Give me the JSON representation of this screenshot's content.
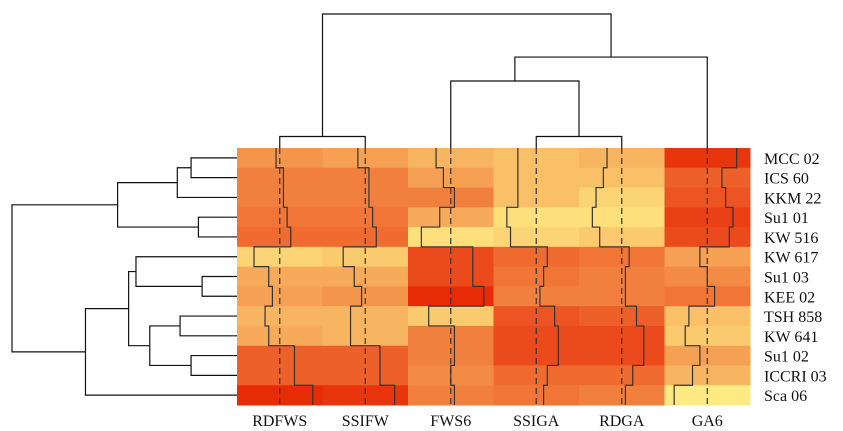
{
  "chart_data": {
    "type": "heatmap",
    "title": "",
    "rows": [
      "MCC 02",
      "ICS 60",
      "KKM  22",
      "Su1 01",
      "KW 516",
      "KW 617",
      "Su1 03",
      "KEE 02",
      "TSH 858",
      "KW 641",
      "Su1 02",
      "ICCRI 03",
      "Sca 06"
    ],
    "columns": [
      "RDFWS",
      "SSIFW",
      "FWS6",
      "SSIGA",
      "RDGA",
      "GA6"
    ],
    "values": [
      [
        0.45,
        0.4,
        0.3,
        0.25,
        0.3,
        0.9
      ],
      [
        0.55,
        0.55,
        0.4,
        0.25,
        0.25,
        0.7
      ],
      [
        0.55,
        0.55,
        0.55,
        0.25,
        0.15,
        0.75
      ],
      [
        0.6,
        0.6,
        0.35,
        0.1,
        0.1,
        0.85
      ],
      [
        0.65,
        0.65,
        0.1,
        0.15,
        0.2,
        0.8
      ],
      [
        0.15,
        0.2,
        0.8,
        0.65,
        0.6,
        0.4
      ],
      [
        0.35,
        0.35,
        0.8,
        0.6,
        0.55,
        0.5
      ],
      [
        0.4,
        0.45,
        0.95,
        0.55,
        0.55,
        0.6
      ],
      [
        0.3,
        0.3,
        0.2,
        0.75,
        0.7,
        0.25
      ],
      [
        0.35,
        0.3,
        0.55,
        0.8,
        0.8,
        0.2
      ],
      [
        0.7,
        0.7,
        0.55,
        0.8,
        0.8,
        0.4
      ],
      [
        0.7,
        0.7,
        0.5,
        0.65,
        0.65,
        0.3
      ],
      [
        0.95,
        0.9,
        0.55,
        0.6,
        0.55,
        0.05
      ]
    ],
    "color_scale": {
      "low": "#fff58a",
      "high": "#e62000"
    },
    "row_dendrogram": [
      {
        "a": "MCC 02",
        "b": "ICS 60",
        "height": 0.5
      },
      {
        "a": "KKM  22",
        "b": "MCC 02+ICS 60",
        "height": 0.65
      },
      {
        "a": "Su1 01",
        "b": "KW 516",
        "height": 0.42
      },
      {
        "a": "MCC 02+ICS 60+KKM  22",
        "b": "Su1 01+KW 516",
        "height": 1.3
      },
      {
        "a": "Su1 03",
        "b": "KEE 02",
        "height": 0.38
      },
      {
        "a": "KW 617",
        "b": "Su1 03+KEE 02",
        "height": 1.1
      },
      {
        "a": "TSH 858",
        "b": "KW 641",
        "height": 0.62
      },
      {
        "a": "Su1 02",
        "b": "ICCRI 03",
        "height": 0.5
      },
      {
        "a": "TSH 858+KW 641",
        "b": "Su1 02+ICCRI 03",
        "height": 0.95
      },
      {
        "a": "KW 617+Su1 03+KEE 02",
        "b": "TSH 858+KW 641+Su1 02+ICCRI 03",
        "height": 1.18
      },
      {
        "a": "KW 617..ICCRI 03",
        "b": "Sca 06",
        "height": 1.65
      },
      {
        "a": "MCC 02..KW 516",
        "b": "KW 617..Sca 06",
        "height": 2.45
      }
    ],
    "col_dendrogram": [
      {
        "a": "RDFWS",
        "b": "SSIFW",
        "height": 0.12
      },
      {
        "a": "SSIGA",
        "b": "RDGA",
        "height": 0.12
      },
      {
        "a": "FWS6",
        "b": "SSIGA+RDGA",
        "height": 0.7
      },
      {
        "a": "FWS6+SSIGA+RDGA",
        "b": "GA6",
        "height": 0.95
      },
      {
        "a": "RDFWS+SSIFW",
        "b": "FWS6+SSIGA+RDGA+GA6",
        "height": 1.4
      }
    ]
  }
}
